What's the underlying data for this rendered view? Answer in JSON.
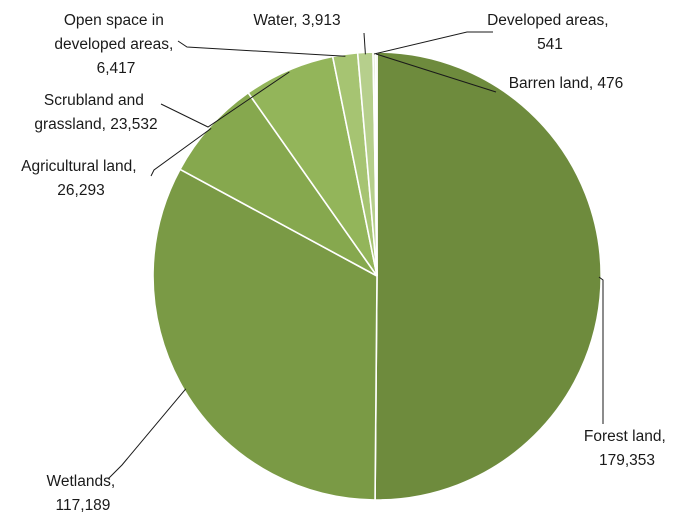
{
  "chart_data": {
    "type": "pie",
    "title": "",
    "slices": [
      {
        "name": "Forest land",
        "value": 179353,
        "color": "#6e8b3d",
        "label_lines": [
          "Forest land,",
          "179,353"
        ]
      },
      {
        "name": "Wetlands",
        "value": 117189,
        "color": "#7a9a45",
        "label_lines": [
          "Wetlands,",
          "117,189"
        ]
      },
      {
        "name": "Agricultural land",
        "value": 26293,
        "color": "#86a84e",
        "label_lines": [
          "Agricultural land,",
          "26,293"
        ]
      },
      {
        "name": "Scrubland and grassland",
        "value": 23532,
        "color": "#93b55a",
        "label_lines": [
          "Scrubland and",
          "grassland, 23,532"
        ]
      },
      {
        "name": "Open space in developed areas",
        "value": 6417,
        "color": "#a6c472",
        "label_lines": [
          "Open space in",
          "developed areas,",
          "6,417"
        ]
      },
      {
        "name": "Water",
        "value": 3913,
        "color": "#b6cf8c",
        "label_lines": [
          "Water, 3,913"
        ]
      },
      {
        "name": "Developed areas",
        "value": 541,
        "color": "#c8dca8",
        "label_lines": [
          "Developed areas,",
          "541"
        ]
      },
      {
        "name": "Barren land",
        "value": 476,
        "color": "#d6e6bf",
        "label_lines": [
          "Barren land, 476"
        ]
      }
    ],
    "start_angle_deg": 0,
    "direction": "clockwise",
    "legend": "none",
    "data_labels": "outside with leader lines"
  }
}
